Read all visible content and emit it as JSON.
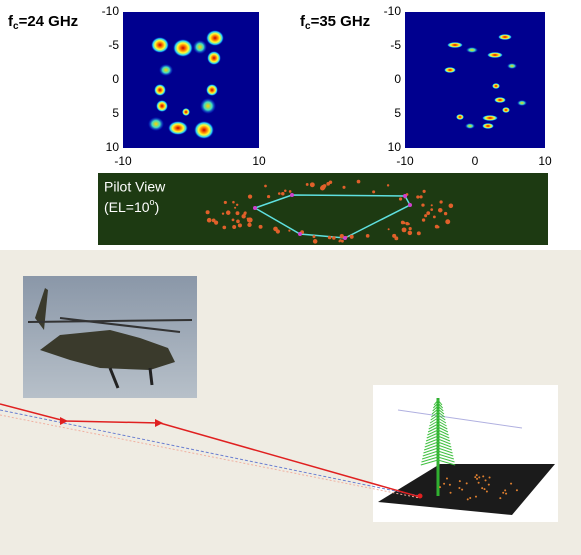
{
  "panels": [
    {
      "label": {
        "main": "f",
        "sub": "c",
        "rest": "=24 GHz"
      },
      "yticks": [
        -10,
        -5,
        0,
        5,
        10
      ],
      "xticks": [
        -10,
        10
      ]
    },
    {
      "label": {
        "main": "f",
        "sub": "c",
        "rest": "=35 GHz"
      },
      "yticks": [
        -10,
        -5,
        0,
        5,
        10
      ],
      "xticks": [
        -10,
        0,
        10
      ]
    }
  ],
  "pilot_view": {
    "line1": "Pilot View",
    "line2_pre": "(EL=10",
    "line2_sup": "o",
    "line2_post": ")"
  }
}
